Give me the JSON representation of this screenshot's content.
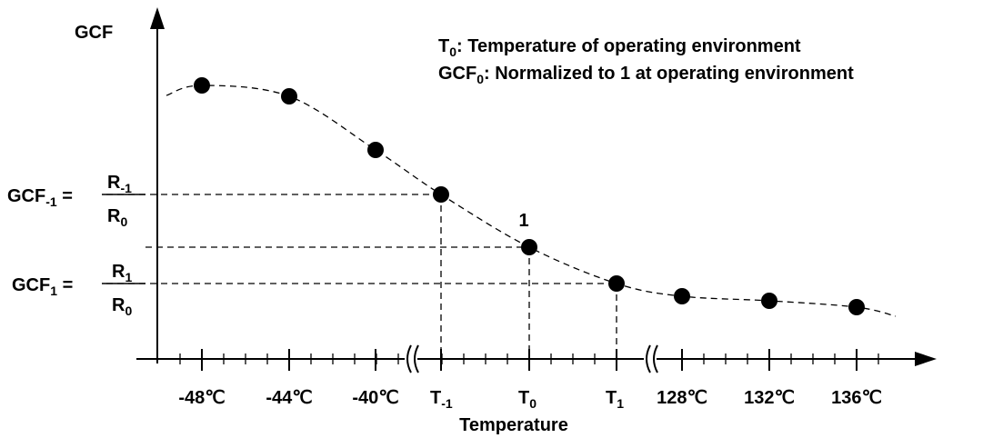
{
  "axis_labels": {
    "y": "GCF",
    "x": "Temperature"
  },
  "notes": [
    {
      "base": "T",
      "sub": "0",
      "text": ": Temperature of operating environment"
    },
    {
      "base": "GCF",
      "sub": "0",
      "text": ": Normalized to 1 at operating environment"
    }
  ],
  "y_labels": [
    {
      "base": "GCF",
      "sub": "-1",
      "eq": " =",
      "num": {
        "base": "R",
        "sub": "-1"
      },
      "den": {
        "base": "R",
        "sub": "0"
      }
    },
    {
      "base": "GCF",
      "sub": "1",
      "eq": " =",
      "num": {
        "base": "R",
        "sub": "1"
      },
      "den": {
        "base": "R",
        "sub": "0"
      }
    }
  ],
  "point_label": "1",
  "x_labels": [
    {
      "base": "-48℃"
    },
    {
      "base": "-44℃"
    },
    {
      "base": "-40℃"
    },
    {
      "base": "T",
      "sub": "-1"
    },
    {
      "base": "T",
      "sub": "0"
    },
    {
      "base": "T",
      "sub": "1"
    },
    {
      "base": "128℃"
    },
    {
      "base": "132℃"
    },
    {
      "base": "136℃"
    }
  ]
}
